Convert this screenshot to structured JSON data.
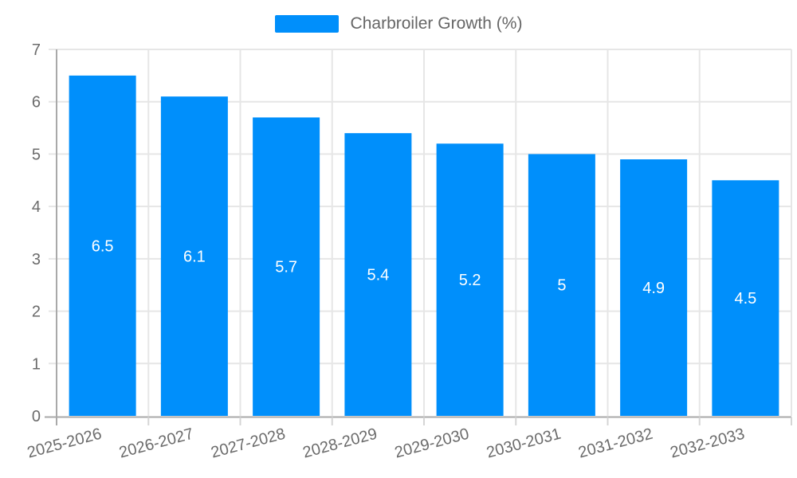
{
  "legend": {
    "label": "Charbroiler Growth (%)"
  },
  "colors": {
    "bar": "#008FFB",
    "grid": "#e6e6e6",
    "axis_line": "#a9a9a9",
    "minor_tick": "#d5d5d5",
    "tick_label": "#6b6b6b",
    "legend_label": "#666666",
    "data_label": "#ffffff",
    "background": "#ffffff"
  },
  "chart_data": {
    "type": "bar",
    "title": "Charbroiler Growth (%)",
    "categories": [
      "2025-2026",
      "2026-2027",
      "2027-2028",
      "2028-2029",
      "2029-2030",
      "2030-2031",
      "2031-2032",
      "2032-2033"
    ],
    "series": [
      {
        "name": "Charbroiler Growth (%)",
        "values": [
          6.5,
          6.1,
          5.7,
          5.4,
          5.2,
          5,
          4.9,
          4.5
        ]
      }
    ],
    "data_labels": [
      "6.5",
      "6.1",
      "5.7",
      "5.4",
      "5.2",
      "5",
      "4.9",
      "4.5"
    ],
    "xlabel": "",
    "ylabel": "",
    "ylim": [
      0,
      7
    ],
    "y_ticks": [
      0,
      1,
      2,
      3,
      4,
      5,
      6,
      7
    ],
    "grid": true,
    "legend_position": "top",
    "x_label_rotation": -15
  }
}
